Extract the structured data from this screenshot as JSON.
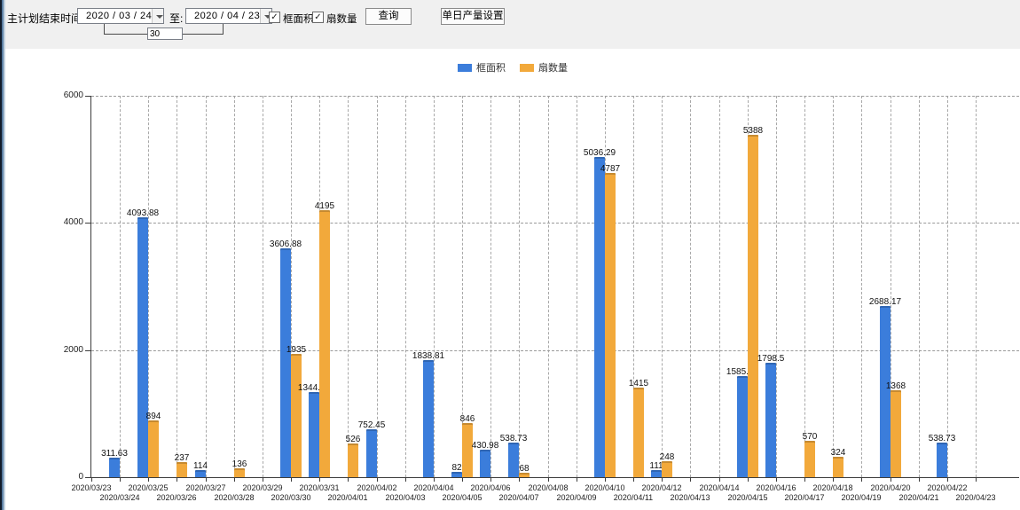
{
  "icons": {
    "check": "✓"
  },
  "toolbar": {
    "end_time_label": "主计划结束时间:",
    "date_from": "2020 / 03 / 24",
    "to_label": "至:",
    "date_to": "2020 / 04 / 23",
    "days_value": "30",
    "checkbox_area_label": "框面积",
    "checkbox_fan_label": "扇数量",
    "query_button": "查询",
    "daily_output_button": "单日产量设置"
  },
  "legend": {
    "items": [
      {
        "label": "框面积",
        "color": "#3b7ddb"
      },
      {
        "label": "扇数量",
        "color": "#f2a93b"
      }
    ]
  },
  "chart_data": {
    "type": "bar",
    "title": "",
    "xlabel": "",
    "ylabel": "",
    "categories": [
      "2020/03/23",
      "2020/03/24",
      "2020/03/25",
      "2020/03/26",
      "2020/03/27",
      "2020/03/28",
      "2020/03/29",
      "2020/03/30",
      "2020/03/31",
      "2020/04/01",
      "2020/04/02",
      "2020/04/03",
      "2020/04/04",
      "2020/04/05",
      "2020/04/06",
      "2020/04/07",
      "2020/04/08",
      "2020/04/09",
      "2020/04/10",
      "2020/04/11",
      "2020/04/12",
      "2020/04/13",
      "2020/04/14",
      "2020/04/15",
      "2020/04/16",
      "2020/04/17",
      "2020/04/18",
      "2020/04/19",
      "2020/04/20",
      "2020/04/21",
      "2020/04/22",
      "2020/04/23"
    ],
    "series": [
      {
        "name": "框面积",
        "color": "#3b7ddb",
        "values": [
          0,
          311.63,
          4093.88,
          0,
          114,
          0,
          0,
          3606.88,
          1344.95,
          0,
          752.45,
          0,
          1838.81,
          82,
          430.98,
          538.73,
          0,
          0,
          5036.29,
          0,
          111,
          0,
          0,
          1585.96,
          1798.5,
          0,
          0,
          0,
          2688.17,
          0,
          538.73,
          0
        ]
      },
      {
        "name": "扇数量",
        "color": "#f2a93b",
        "values": [
          0,
          0,
          894,
          237,
          0,
          136,
          0,
          1935,
          4195,
          526,
          0,
          0,
          0,
          846,
          0,
          68,
          0,
          0,
          4787,
          1415,
          248,
          0,
          0,
          5388,
          0,
          570,
          324,
          0,
          1368,
          0,
          0,
          0
        ]
      }
    ],
    "ylim": [
      0,
      6000
    ],
    "yticks": [
      0,
      2000,
      4000,
      6000
    ],
    "grid": "dashed-both",
    "legend_position": "top-center",
    "data_labels": true,
    "x_labels_staggered": true
  }
}
